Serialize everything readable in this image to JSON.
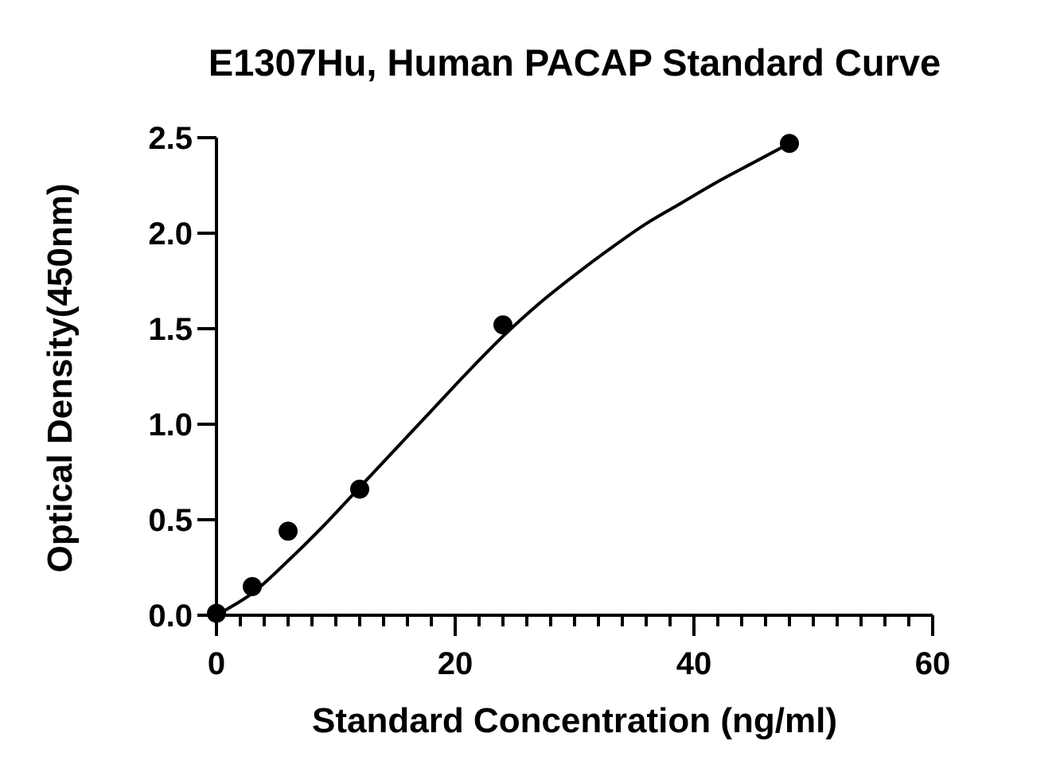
{
  "chart_data": {
    "type": "scatter",
    "title": "E1307Hu, Human PACAP Standard Curve",
    "xlabel": "Standard Concentration (ng/ml)",
    "ylabel": "Optical Density(450nm)",
    "xlim": [
      0,
      60
    ],
    "ylim": [
      0,
      2.5
    ],
    "x_ticks": [
      "0",
      "20",
      "40",
      "60"
    ],
    "y_ticks": [
      "0.0",
      "0.5",
      "1.0",
      "1.5",
      "2.0",
      "2.5"
    ],
    "x_minor_step": 2,
    "grid": false,
    "legend": "none",
    "series": [
      {
        "x": [
          0,
          3,
          6,
          12,
          24,
          48
        ],
        "y": [
          0.01,
          0.15,
          0.44,
          0.66,
          1.52,
          2.47
        ],
        "fit_curve": {
          "x": [
            0,
            3,
            6,
            9,
            12,
            15,
            18,
            21,
            24,
            27,
            30,
            33,
            36,
            39,
            42,
            45,
            48
          ],
          "y": [
            0.0,
            0.115,
            0.285,
            0.47,
            0.67,
            0.87,
            1.07,
            1.27,
            1.46,
            1.63,
            1.78,
            1.92,
            2.05,
            2.16,
            2.27,
            2.37,
            2.47
          ]
        }
      }
    ],
    "marker_color": "#000000",
    "line_color": "#000000"
  }
}
